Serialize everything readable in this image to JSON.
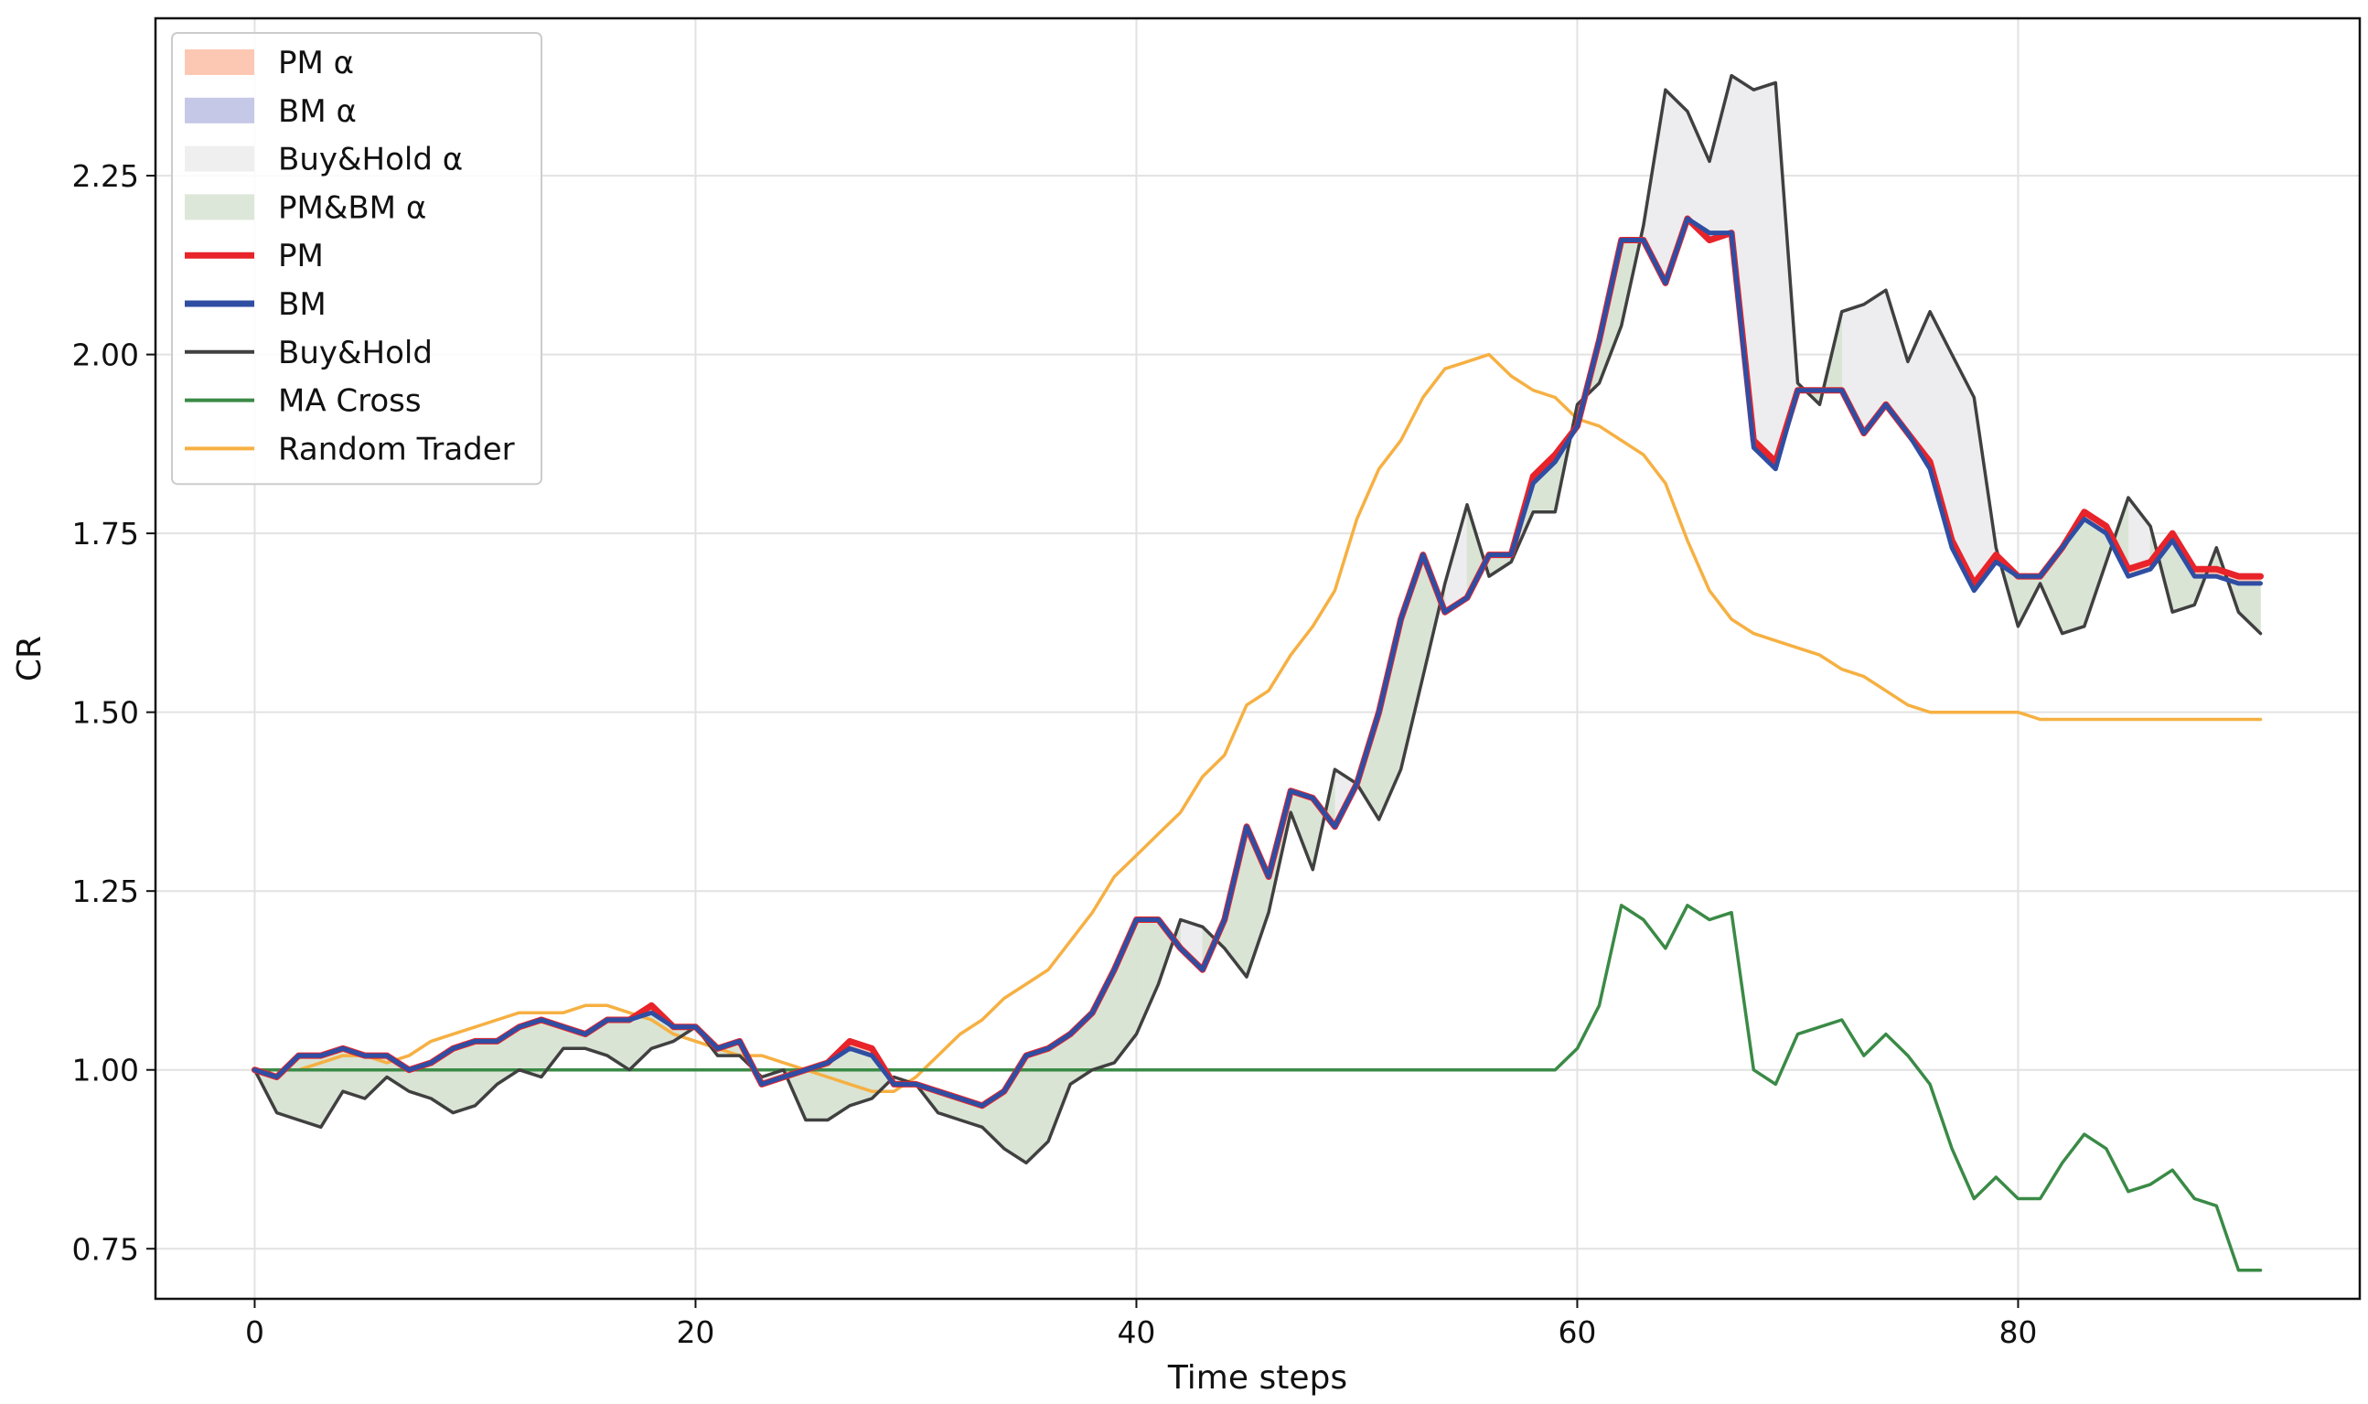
{
  "chart_data": {
    "type": "line",
    "xlabel": "Time steps",
    "ylabel": "CR",
    "xlim": [
      -4.5,
      95.5
    ],
    "ylim": [
      0.68,
      2.47
    ],
    "xticks": [
      0,
      20,
      40,
      60,
      80
    ],
    "xtick_labels": [
      "0",
      "20",
      "40",
      "60",
      "80"
    ],
    "yticks": [
      0.75,
      1.0,
      1.25,
      1.5,
      1.75,
      2.0,
      2.25
    ],
    "ytick_labels": [
      "0.75",
      "1.00",
      "1.25",
      "1.50",
      "1.75",
      "2.00",
      "2.25"
    ],
    "grid": true,
    "legend_position": "top-left",
    "x": [
      0,
      1,
      2,
      3,
      4,
      5,
      6,
      7,
      8,
      9,
      10,
      11,
      12,
      13,
      14,
      15,
      16,
      17,
      18,
      19,
      20,
      21,
      22,
      23,
      24,
      25,
      26,
      27,
      28,
      29,
      30,
      31,
      32,
      33,
      34,
      35,
      36,
      37,
      38,
      39,
      40,
      41,
      42,
      43,
      44,
      45,
      46,
      47,
      48,
      49,
      50,
      51,
      52,
      53,
      54,
      55,
      56,
      57,
      58,
      59,
      60,
      61,
      62,
      63,
      64,
      65,
      66,
      67,
      68,
      69,
      70,
      71,
      72,
      73,
      74,
      75,
      76,
      77,
      78,
      79,
      80,
      81,
      82,
      83,
      84,
      85,
      86,
      87,
      88,
      89,
      90,
      91
    ],
    "series": [
      {
        "name": "PM",
        "color": "#e8232a",
        "values": [
          1.0,
          0.99,
          1.02,
          1.02,
          1.03,
          1.02,
          1.02,
          1.0,
          1.01,
          1.03,
          1.04,
          1.04,
          1.06,
          1.07,
          1.06,
          1.05,
          1.07,
          1.07,
          1.09,
          1.06,
          1.06,
          1.03,
          1.04,
          0.98,
          0.99,
          1.0,
          1.01,
          1.04,
          1.03,
          0.98,
          0.98,
          0.97,
          0.96,
          0.95,
          0.97,
          1.02,
          1.03,
          1.05,
          1.08,
          1.14,
          1.21,
          1.21,
          1.17,
          1.14,
          1.21,
          1.34,
          1.27,
          1.39,
          1.38,
          1.34,
          1.4,
          1.5,
          1.63,
          1.72,
          1.64,
          1.66,
          1.72,
          1.72,
          1.83,
          1.86,
          1.9,
          2.02,
          2.16,
          2.16,
          2.1,
          2.19,
          2.16,
          2.17,
          1.88,
          1.85,
          1.95,
          1.95,
          1.95,
          1.89,
          1.93,
          1.89,
          1.85,
          1.74,
          1.68,
          1.72,
          1.69,
          1.69,
          1.73,
          1.78,
          1.76,
          1.7,
          1.71,
          1.75,
          1.7,
          1.7,
          1.69,
          1.69
        ]
      },
      {
        "name": "BM",
        "color": "#2f4ea3",
        "values": [
          1.0,
          0.99,
          1.02,
          1.02,
          1.03,
          1.02,
          1.02,
          1.0,
          1.01,
          1.03,
          1.04,
          1.04,
          1.06,
          1.07,
          1.06,
          1.05,
          1.07,
          1.07,
          1.08,
          1.06,
          1.06,
          1.03,
          1.04,
          0.98,
          0.99,
          1.0,
          1.01,
          1.03,
          1.02,
          0.98,
          0.98,
          0.97,
          0.96,
          0.95,
          0.97,
          1.02,
          1.03,
          1.05,
          1.08,
          1.14,
          1.21,
          1.21,
          1.17,
          1.14,
          1.21,
          1.34,
          1.27,
          1.39,
          1.38,
          1.34,
          1.4,
          1.5,
          1.63,
          1.72,
          1.64,
          1.66,
          1.72,
          1.72,
          1.82,
          1.85,
          1.9,
          2.02,
          2.16,
          2.16,
          2.1,
          2.19,
          2.17,
          2.17,
          1.87,
          1.84,
          1.95,
          1.95,
          1.95,
          1.89,
          1.93,
          1.89,
          1.84,
          1.73,
          1.67,
          1.71,
          1.69,
          1.69,
          1.73,
          1.77,
          1.75,
          1.69,
          1.7,
          1.74,
          1.69,
          1.69,
          1.68,
          1.68
        ]
      },
      {
        "name": "Buy&Hold",
        "color": "#404040",
        "values": [
          1.0,
          0.94,
          0.93,
          0.92,
          0.97,
          0.96,
          0.99,
          0.97,
          0.96,
          0.94,
          0.95,
          0.98,
          1.0,
          0.99,
          1.03,
          1.03,
          1.02,
          1.0,
          1.03,
          1.04,
          1.06,
          1.02,
          1.02,
          0.99,
          1.0,
          0.93,
          0.93,
          0.95,
          0.96,
          0.99,
          0.98,
          0.94,
          0.93,
          0.92,
          0.89,
          0.87,
          0.9,
          0.98,
          1.0,
          1.01,
          1.05,
          1.12,
          1.21,
          1.2,
          1.17,
          1.13,
          1.22,
          1.36,
          1.28,
          1.42,
          1.4,
          1.35,
          1.42,
          1.55,
          1.68,
          1.79,
          1.69,
          1.71,
          1.78,
          1.78,
          1.93,
          1.96,
          2.04,
          2.18,
          2.37,
          2.34,
          2.27,
          2.39,
          2.37,
          2.38,
          1.96,
          1.93,
          2.06,
          2.07,
          2.09,
          1.99,
          2.06,
          2.0,
          1.94,
          1.73,
          1.62,
          1.68,
          1.61,
          1.62,
          1.71,
          1.8,
          1.76,
          1.64,
          1.65,
          1.73,
          1.64,
          1.61
        ]
      },
      {
        "name": "MA Cross",
        "color": "#3a8a46",
        "values": [
          1.0,
          1.0,
          1.0,
          1.0,
          1.0,
          1.0,
          1.0,
          1.0,
          1.0,
          1.0,
          1.0,
          1.0,
          1.0,
          1.0,
          1.0,
          1.0,
          1.0,
          1.0,
          1.0,
          1.0,
          1.0,
          1.0,
          1.0,
          1.0,
          1.0,
          1.0,
          1.0,
          1.0,
          1.0,
          1.0,
          1.0,
          1.0,
          1.0,
          1.0,
          1.0,
          1.0,
          1.0,
          1.0,
          1.0,
          1.0,
          1.0,
          1.0,
          1.0,
          1.0,
          1.0,
          1.0,
          1.0,
          1.0,
          1.0,
          1.0,
          1.0,
          1.0,
          1.0,
          1.0,
          1.0,
          1.0,
          1.0,
          1.0,
          1.0,
          1.0,
          1.03,
          1.09,
          1.23,
          1.21,
          1.17,
          1.23,
          1.21,
          1.22,
          1.0,
          0.98,
          1.05,
          1.06,
          1.07,
          1.02,
          1.05,
          1.02,
          0.98,
          0.89,
          0.82,
          0.85,
          0.82,
          0.82,
          0.87,
          0.91,
          0.89,
          0.83,
          0.84,
          0.86,
          0.82,
          0.81,
          0.72,
          0.72
        ]
      },
      {
        "name": "Random Trader",
        "color": "#f6b042",
        "values": [
          1.0,
          1.0,
          1.0,
          1.01,
          1.02,
          1.02,
          1.01,
          1.02,
          1.04,
          1.05,
          1.06,
          1.07,
          1.08,
          1.08,
          1.08,
          1.09,
          1.09,
          1.08,
          1.07,
          1.05,
          1.04,
          1.03,
          1.02,
          1.02,
          1.01,
          1.0,
          0.99,
          0.98,
          0.97,
          0.97,
          0.99,
          1.02,
          1.05,
          1.07,
          1.1,
          1.12,
          1.14,
          1.18,
          1.22,
          1.27,
          1.3,
          1.33,
          1.36,
          1.41,
          1.44,
          1.51,
          1.53,
          1.58,
          1.62,
          1.67,
          1.77,
          1.84,
          1.88,
          1.94,
          1.98,
          1.99,
          2.0,
          1.97,
          1.95,
          1.94,
          1.91,
          1.9,
          1.88,
          1.86,
          1.82,
          1.74,
          1.67,
          1.63,
          1.61,
          1.6,
          1.59,
          1.58,
          1.56,
          1.55,
          1.53,
          1.51,
          1.5,
          1.5,
          1.5,
          1.5,
          1.5,
          1.49,
          1.49,
          1.49,
          1.49,
          1.49,
          1.49,
          1.49,
          1.49,
          1.49,
          1.49,
          1.49
        ]
      }
    ],
    "fills": [
      {
        "name": "PM α",
        "color": "#fcc8b4",
        "between": [
          "PM",
          "BM"
        ],
        "where": "PM > BM"
      },
      {
        "name": "BM α",
        "color": "#c5c8e6",
        "between": [
          "BM",
          "PM"
        ],
        "where": "BM > PM"
      },
      {
        "name": "Buy&Hold α",
        "color": "#ededef",
        "between": [
          "Buy&Hold",
          "PM"
        ],
        "where": "Buy&Hold > max(PM, BM)"
      },
      {
        "name": "PM&BM α",
        "color": "#d9e4d5",
        "between": [
          "PM",
          "Buy&Hold"
        ],
        "where": "min(PM, BM) > Buy&Hold"
      }
    ],
    "legend": [
      {
        "label": "PM α",
        "kind": "patch",
        "color": "#fcc8b4"
      },
      {
        "label": "BM α",
        "kind": "patch",
        "color": "#c5c8e6"
      },
      {
        "label": "Buy&Hold α",
        "kind": "patch",
        "color": "#efefef"
      },
      {
        "label": "PM&BM α",
        "kind": "patch",
        "color": "#dde7d9"
      },
      {
        "label": "PM",
        "kind": "line",
        "color": "#e8232a",
        "width": "thick"
      },
      {
        "label": "BM",
        "kind": "line",
        "color": "#2f4ea3",
        "width": "thick"
      },
      {
        "label": "Buy&Hold",
        "kind": "line",
        "color": "#404040",
        "width": "thin"
      },
      {
        "label": "MA Cross",
        "kind": "line",
        "color": "#3a8a46",
        "width": "thin"
      },
      {
        "label": "Random Trader",
        "kind": "line",
        "color": "#f6b042",
        "width": "thin"
      }
    ]
  }
}
